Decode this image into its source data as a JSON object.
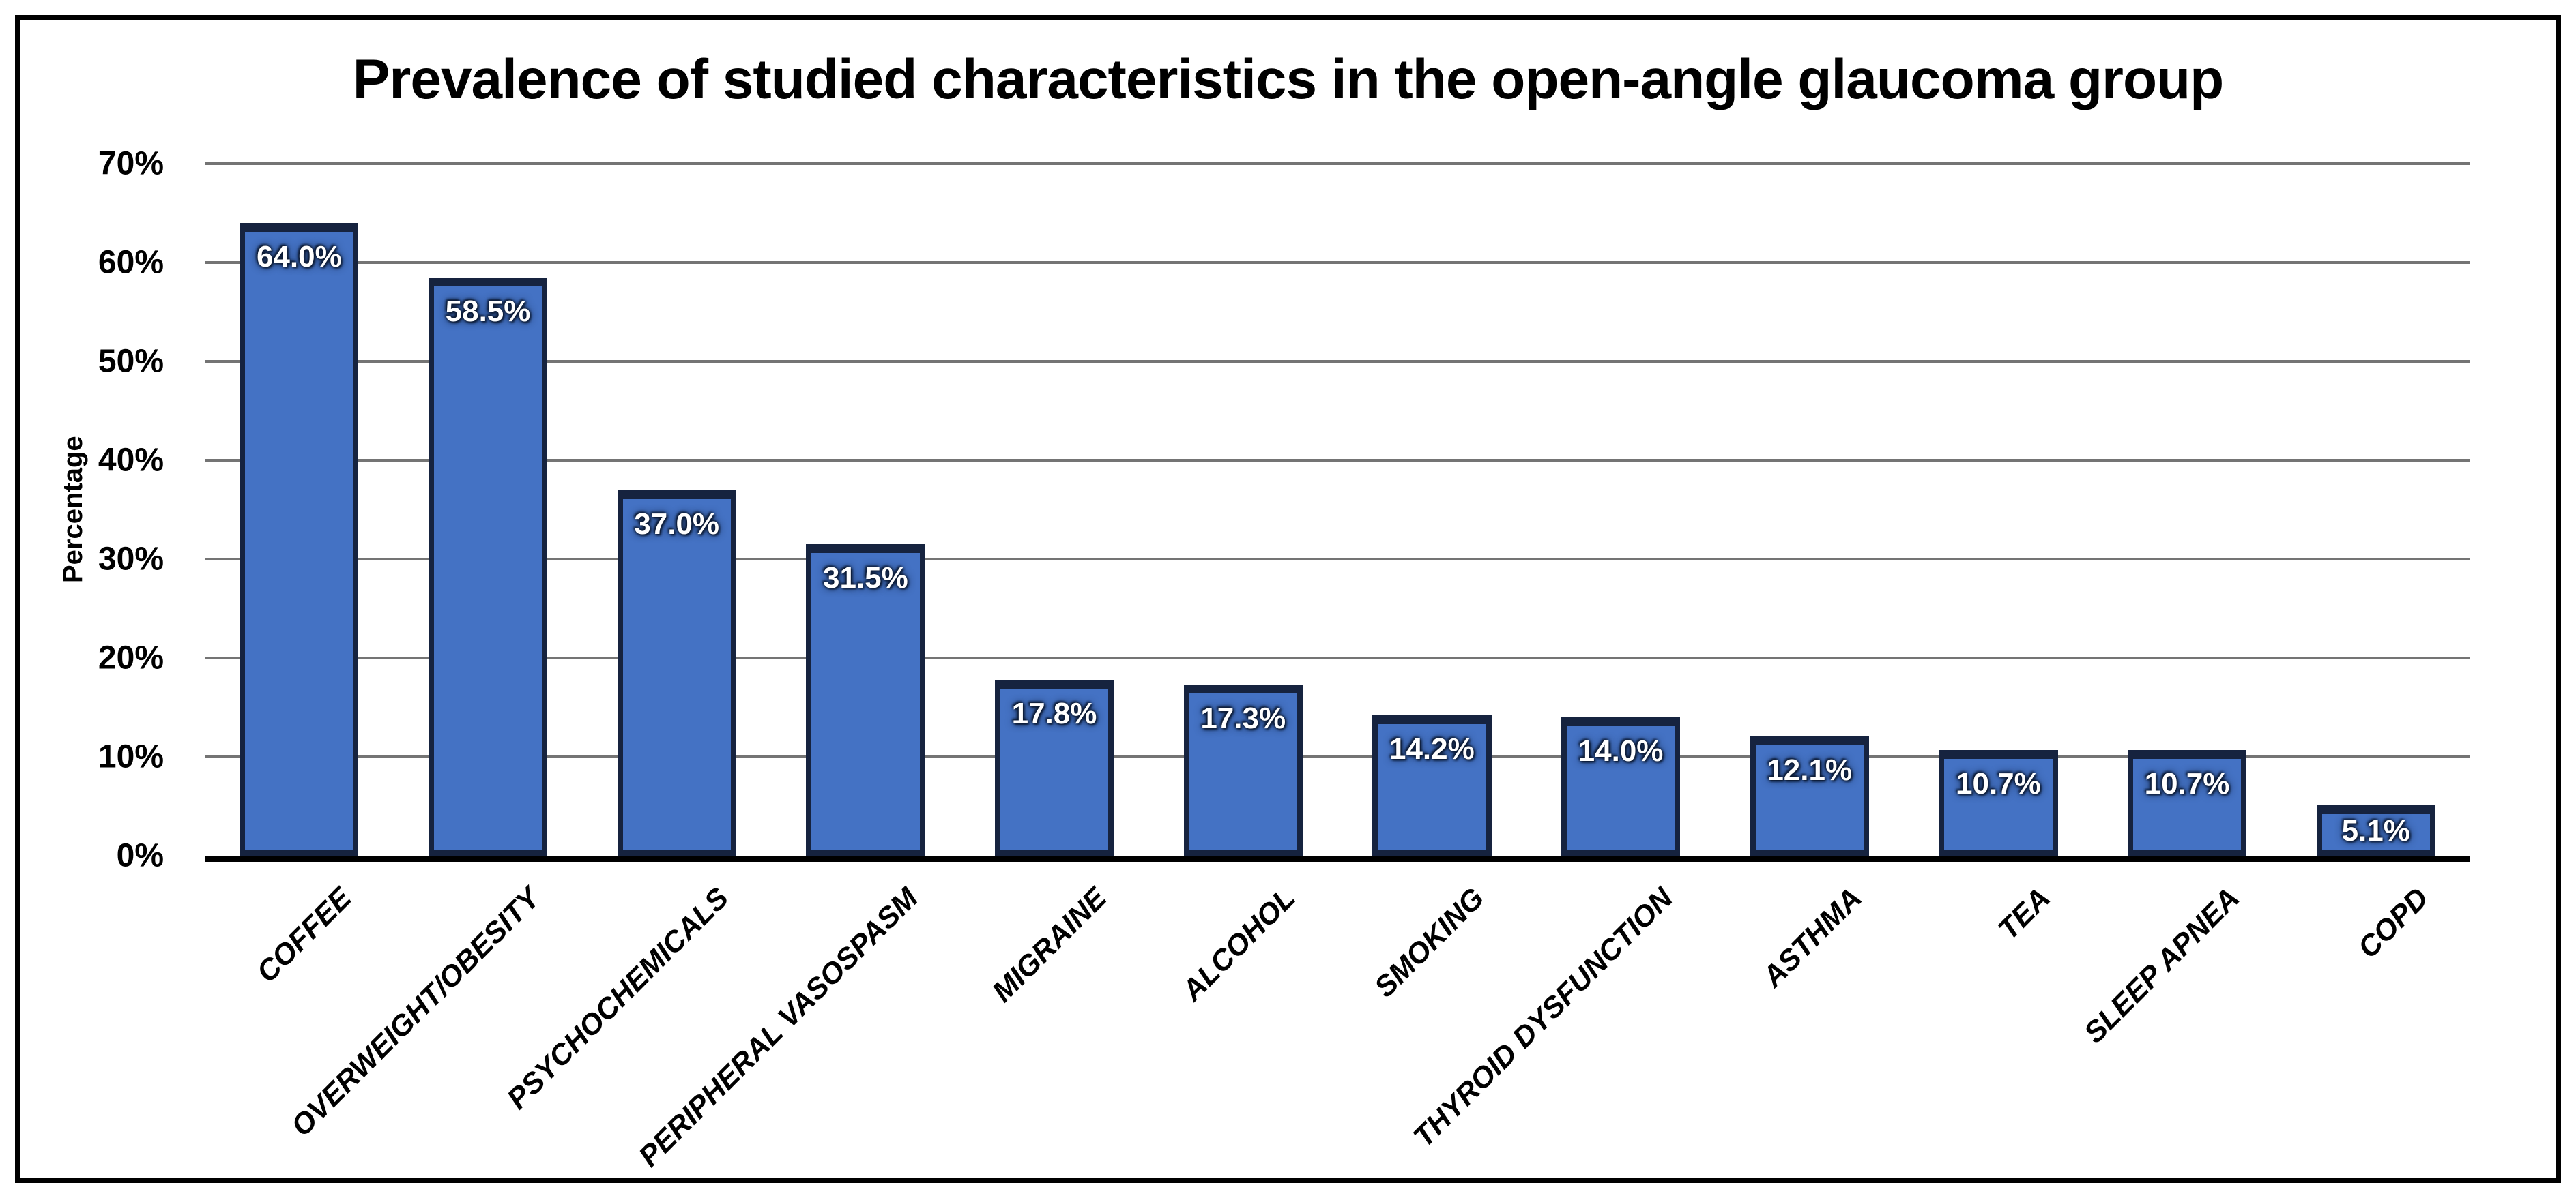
{
  "chart_data": {
    "type": "bar",
    "title": "Prevalence of studied characteristics in the open-angle glaucoma group",
    "ylabel": "Percentage",
    "xlabel": "",
    "categories": [
      "COFFEE",
      "OVERWEIGHT/OBESITY",
      "PSYCHOCHEMICALS",
      "PERIPHERAL VASOSPASM",
      "MIGRAINE",
      "ALCOHOL",
      "SMOKING",
      "THYROID DYSFUNCTION",
      "ASTHMA",
      "TEA",
      "SLEEP APNEA",
      "COPD"
    ],
    "values": [
      64.0,
      58.5,
      37.0,
      31.5,
      17.8,
      17.3,
      14.2,
      14.0,
      12.1,
      10.7,
      10.7,
      5.1
    ],
    "value_labels": [
      "64.0%",
      "58.5%",
      "37.0%",
      "31.5%",
      "17.8%",
      "17.3%",
      "14.2%",
      "14.0%",
      "12.1%",
      "10.7%",
      "10.7%",
      "5.1%"
    ],
    "y_ticks": [
      "0%",
      "10%",
      "20%",
      "30%",
      "40%",
      "50%",
      "60%",
      "70%"
    ],
    "ylim": [
      0,
      70
    ],
    "grid": true,
    "legend": "none",
    "colors": {
      "bar_fill": "#4472c4",
      "bar_border": "#16233f",
      "gridline": "#747474",
      "axis_line": "#000000",
      "value_text": "#ffffff",
      "text": "#000000",
      "frame_border": "#000000",
      "background": "#ffffff"
    }
  }
}
